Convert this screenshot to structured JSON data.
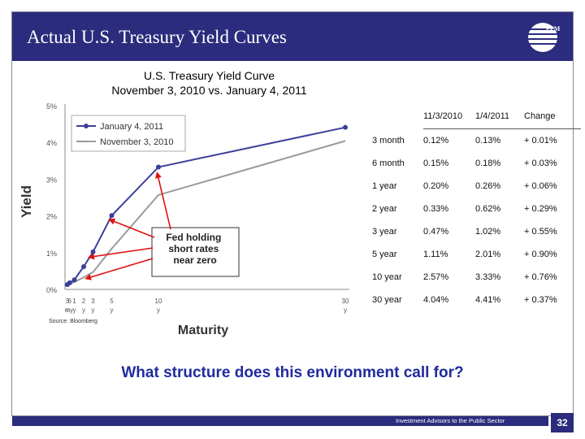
{
  "slide": {
    "title": "Actual U.S. Treasury Yield Curves",
    "logo_text": "PPM",
    "question": "What structure does this environment call for?",
    "footer": "Investment Advisors to the Public Sector",
    "page_number": "32",
    "accent_color": "#2b2c7d",
    "question_color": "#1f2b9e"
  },
  "chart_data": {
    "type": "line",
    "title": "U.S. Treasury Yield Curve",
    "subtitle": "November 3, 2010 vs. January 4, 2011",
    "xlabel": "Maturity",
    "ylabel": "Yield",
    "x": [
      0.25,
      0.5,
      1,
      2,
      3,
      5,
      10,
      30
    ],
    "x_tick_labels": [
      {
        "top": "3",
        "bottom": "m"
      },
      {
        "top": "6",
        "bottom": "ny"
      },
      {
        "top": "1",
        "bottom": "y"
      },
      {
        "top": "2",
        "bottom": "y"
      },
      {
        "top": "3",
        "bottom": "y"
      },
      {
        "top": "5",
        "bottom": "y"
      },
      {
        "top": "10",
        "bottom": "y"
      },
      {
        "top": "30",
        "bottom": "y"
      }
    ],
    "y_ticks": [
      "0%",
      "1%",
      "2%",
      "3%",
      "4%",
      "5%"
    ],
    "ylim": [
      0,
      5
    ],
    "grid": false,
    "legend_position": "top-left",
    "series": [
      {
        "name": "January 4, 2011",
        "color": "#3a3f9a",
        "values": [
          0.13,
          0.18,
          0.26,
          0.62,
          1.02,
          2.01,
          3.33,
          4.41
        ]
      },
      {
        "name": "November 3, 2010",
        "color": "#9a9a9a",
        "values": [
          0.12,
          0.15,
          0.2,
          0.33,
          0.47,
          1.11,
          2.57,
          4.04
        ]
      }
    ],
    "annotation": "Fed holding short rates near zero",
    "source": "Source: Bloomberg"
  },
  "table": {
    "headers": [
      "",
      "11/3/2010",
      "1/4/2011",
      "Change"
    ],
    "rows": [
      [
        "3 month",
        "0.12%",
        "0.13%",
        "+ 0.01%"
      ],
      [
        "6 month",
        "0.15%",
        "0.18%",
        "+ 0.03%"
      ],
      [
        "1 year",
        "0.20%",
        "0.26%",
        "+ 0.06%"
      ],
      [
        "2 year",
        "0.33%",
        "0.62%",
        "+ 0.29%"
      ],
      [
        "3 year",
        "0.47%",
        "1.02%",
        "+ 0.55%"
      ],
      [
        "5 year",
        "1.11%",
        "2.01%",
        "+ 0.90%"
      ],
      [
        "10 year",
        "2.57%",
        "3.33%",
        "+ 0.76%"
      ],
      [
        "30 year",
        "4.04%",
        "4.41%",
        "+ 0.37%"
      ]
    ]
  }
}
